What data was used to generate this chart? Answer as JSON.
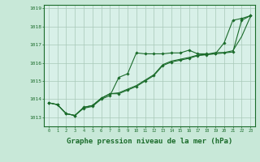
{
  "background_color": "#c8e8d8",
  "plot_bg_color": "#d8f0e8",
  "grid_color": "#a8c8b8",
  "line_color": "#1a6b2a",
  "xlabel": "Graphe pression niveau de la mer (hPa)",
  "xlabel_fontsize": 6.5,
  "ylim": [
    1012.5,
    1019.2
  ],
  "xlim": [
    -0.5,
    23.5
  ],
  "yticks": [
    1013,
    1014,
    1015,
    1016,
    1017,
    1018,
    1019
  ],
  "xticks": [
    0,
    1,
    2,
    3,
    4,
    5,
    6,
    7,
    8,
    9,
    10,
    11,
    12,
    13,
    14,
    15,
    16,
    17,
    18,
    19,
    20,
    21,
    22,
    23
  ],
  "series1_x": [
    0,
    1,
    2,
    3,
    4,
    5,
    6,
    7,
    8,
    9,
    10,
    11,
    12,
    13,
    14,
    15,
    16,
    17,
    18,
    19,
    20,
    21,
    22,
    23
  ],
  "series1_y": [
    1013.8,
    1013.7,
    1013.2,
    1013.1,
    1013.5,
    1013.6,
    1014.0,
    1014.2,
    1015.2,
    1015.4,
    1016.55,
    1016.5,
    1016.5,
    1016.5,
    1016.55,
    1016.55,
    1016.7,
    1016.5,
    1016.5,
    1016.5,
    1017.1,
    1018.35,
    1018.45,
    1018.6
  ],
  "series2_x": [
    0,
    1,
    2,
    3,
    4,
    5,
    6,
    7,
    8,
    9,
    10,
    11,
    12,
    13,
    14,
    15,
    16,
    17,
    18,
    19,
    20,
    21,
    22,
    23
  ],
  "series2_y": [
    1013.8,
    1013.7,
    1013.2,
    1013.1,
    1013.55,
    1013.65,
    1014.05,
    1014.3,
    1014.3,
    1014.5,
    1014.7,
    1015.0,
    1015.3,
    1015.85,
    1016.05,
    1016.15,
    1016.25,
    1016.4,
    1016.45,
    1016.5,
    1016.55,
    1016.6,
    1018.35,
    1018.6
  ],
  "series3_x": [
    0,
    1,
    2,
    3,
    4,
    5,
    6,
    7,
    8,
    9,
    10,
    11,
    12,
    13,
    14,
    15,
    16,
    17,
    18,
    19,
    20,
    21,
    22,
    23
  ],
  "series3_y": [
    1013.8,
    1013.7,
    1013.2,
    1013.1,
    1013.55,
    1013.65,
    1014.05,
    1014.3,
    1014.35,
    1014.55,
    1014.75,
    1015.05,
    1015.35,
    1015.9,
    1016.1,
    1016.2,
    1016.3,
    1016.43,
    1016.47,
    1016.57,
    1016.57,
    1016.67,
    1017.45,
    1018.55
  ]
}
